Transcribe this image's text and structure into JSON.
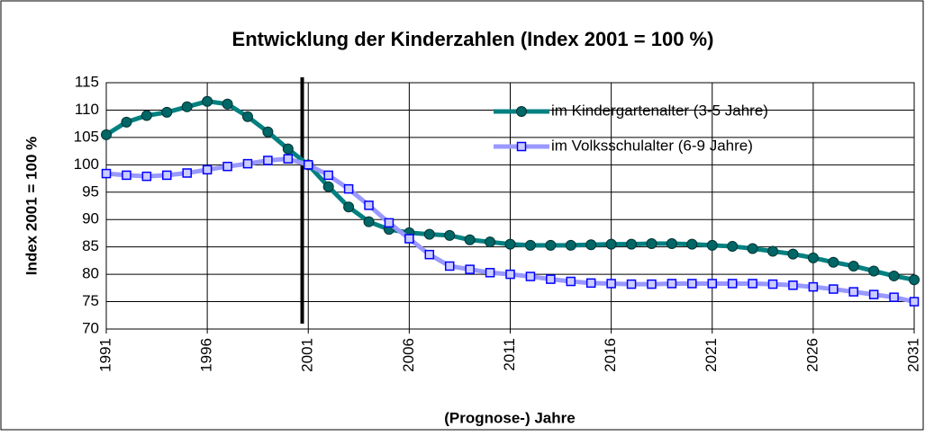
{
  "chart_data": {
    "type": "line",
    "title": "Entwicklung der Kinderzahlen (Index 2001 = 100 %)",
    "x_label": "(Prognose-) Jahre",
    "y_label": "Index 2001 = 100 %",
    "x": [
      1991,
      1992,
      1993,
      1994,
      1995,
      1996,
      1997,
      1998,
      1999,
      2000,
      2001,
      2002,
      2003,
      2004,
      2005,
      2006,
      2007,
      2008,
      2009,
      2010,
      2011,
      2012,
      2013,
      2014,
      2015,
      2016,
      2017,
      2018,
      2019,
      2020,
      2021,
      2022,
      2023,
      2024,
      2025,
      2026,
      2027,
      2028,
      2029,
      2030,
      2031
    ],
    "series": [
      {
        "name": "im Kindergartenalter (3-5 Jahre)",
        "color": "#008080",
        "marker_color": "#006666",
        "marker": "circle",
        "values": [
          105.5,
          107.8,
          109,
          109.6,
          110.6,
          111.6,
          111.1,
          108.8,
          106,
          102.9,
          100,
          96,
          92.3,
          89.6,
          88.2,
          87.6,
          87.3,
          87.1,
          86.3,
          85.9,
          85.5,
          85.3,
          85.3,
          85.3,
          85.4,
          85.5,
          85.5,
          85.6,
          85.6,
          85.5,
          85.3,
          85.1,
          84.7,
          84.2,
          83.7,
          83,
          82.2,
          81.5,
          80.6,
          79.7,
          79
        ]
      },
      {
        "name": "im Volksschulalter (6-9 Jahre)",
        "color": "#9999ff",
        "marker_color": "#ccccff",
        "marker": "square",
        "values": [
          98.4,
          98.1,
          97.9,
          98.1,
          98.5,
          99.1,
          99.7,
          100.2,
          100.8,
          101.1,
          100,
          98.1,
          95.6,
          92.6,
          89.4,
          86.5,
          83.6,
          81.5,
          80.9,
          80.3,
          80,
          79.6,
          79.1,
          78.7,
          78.4,
          78.3,
          78.2,
          78.2,
          78.3,
          78.3,
          78.3,
          78.3,
          78.3,
          78.2,
          78,
          77.7,
          77.3,
          76.8,
          76.3,
          75.8,
          75
        ]
      }
    ],
    "vline": 2000.7,
    "xlim": [
      1991,
      2031
    ],
    "xticks": [
      1991,
      1996,
      2001,
      2006,
      2011,
      2016,
      2021,
      2026,
      2031
    ],
    "ylim": [
      70,
      115
    ],
    "yticks": [
      70,
      75,
      80,
      85,
      90,
      95,
      100,
      105,
      110,
      115
    ],
    "grid": true,
    "legend": "upper right"
  }
}
